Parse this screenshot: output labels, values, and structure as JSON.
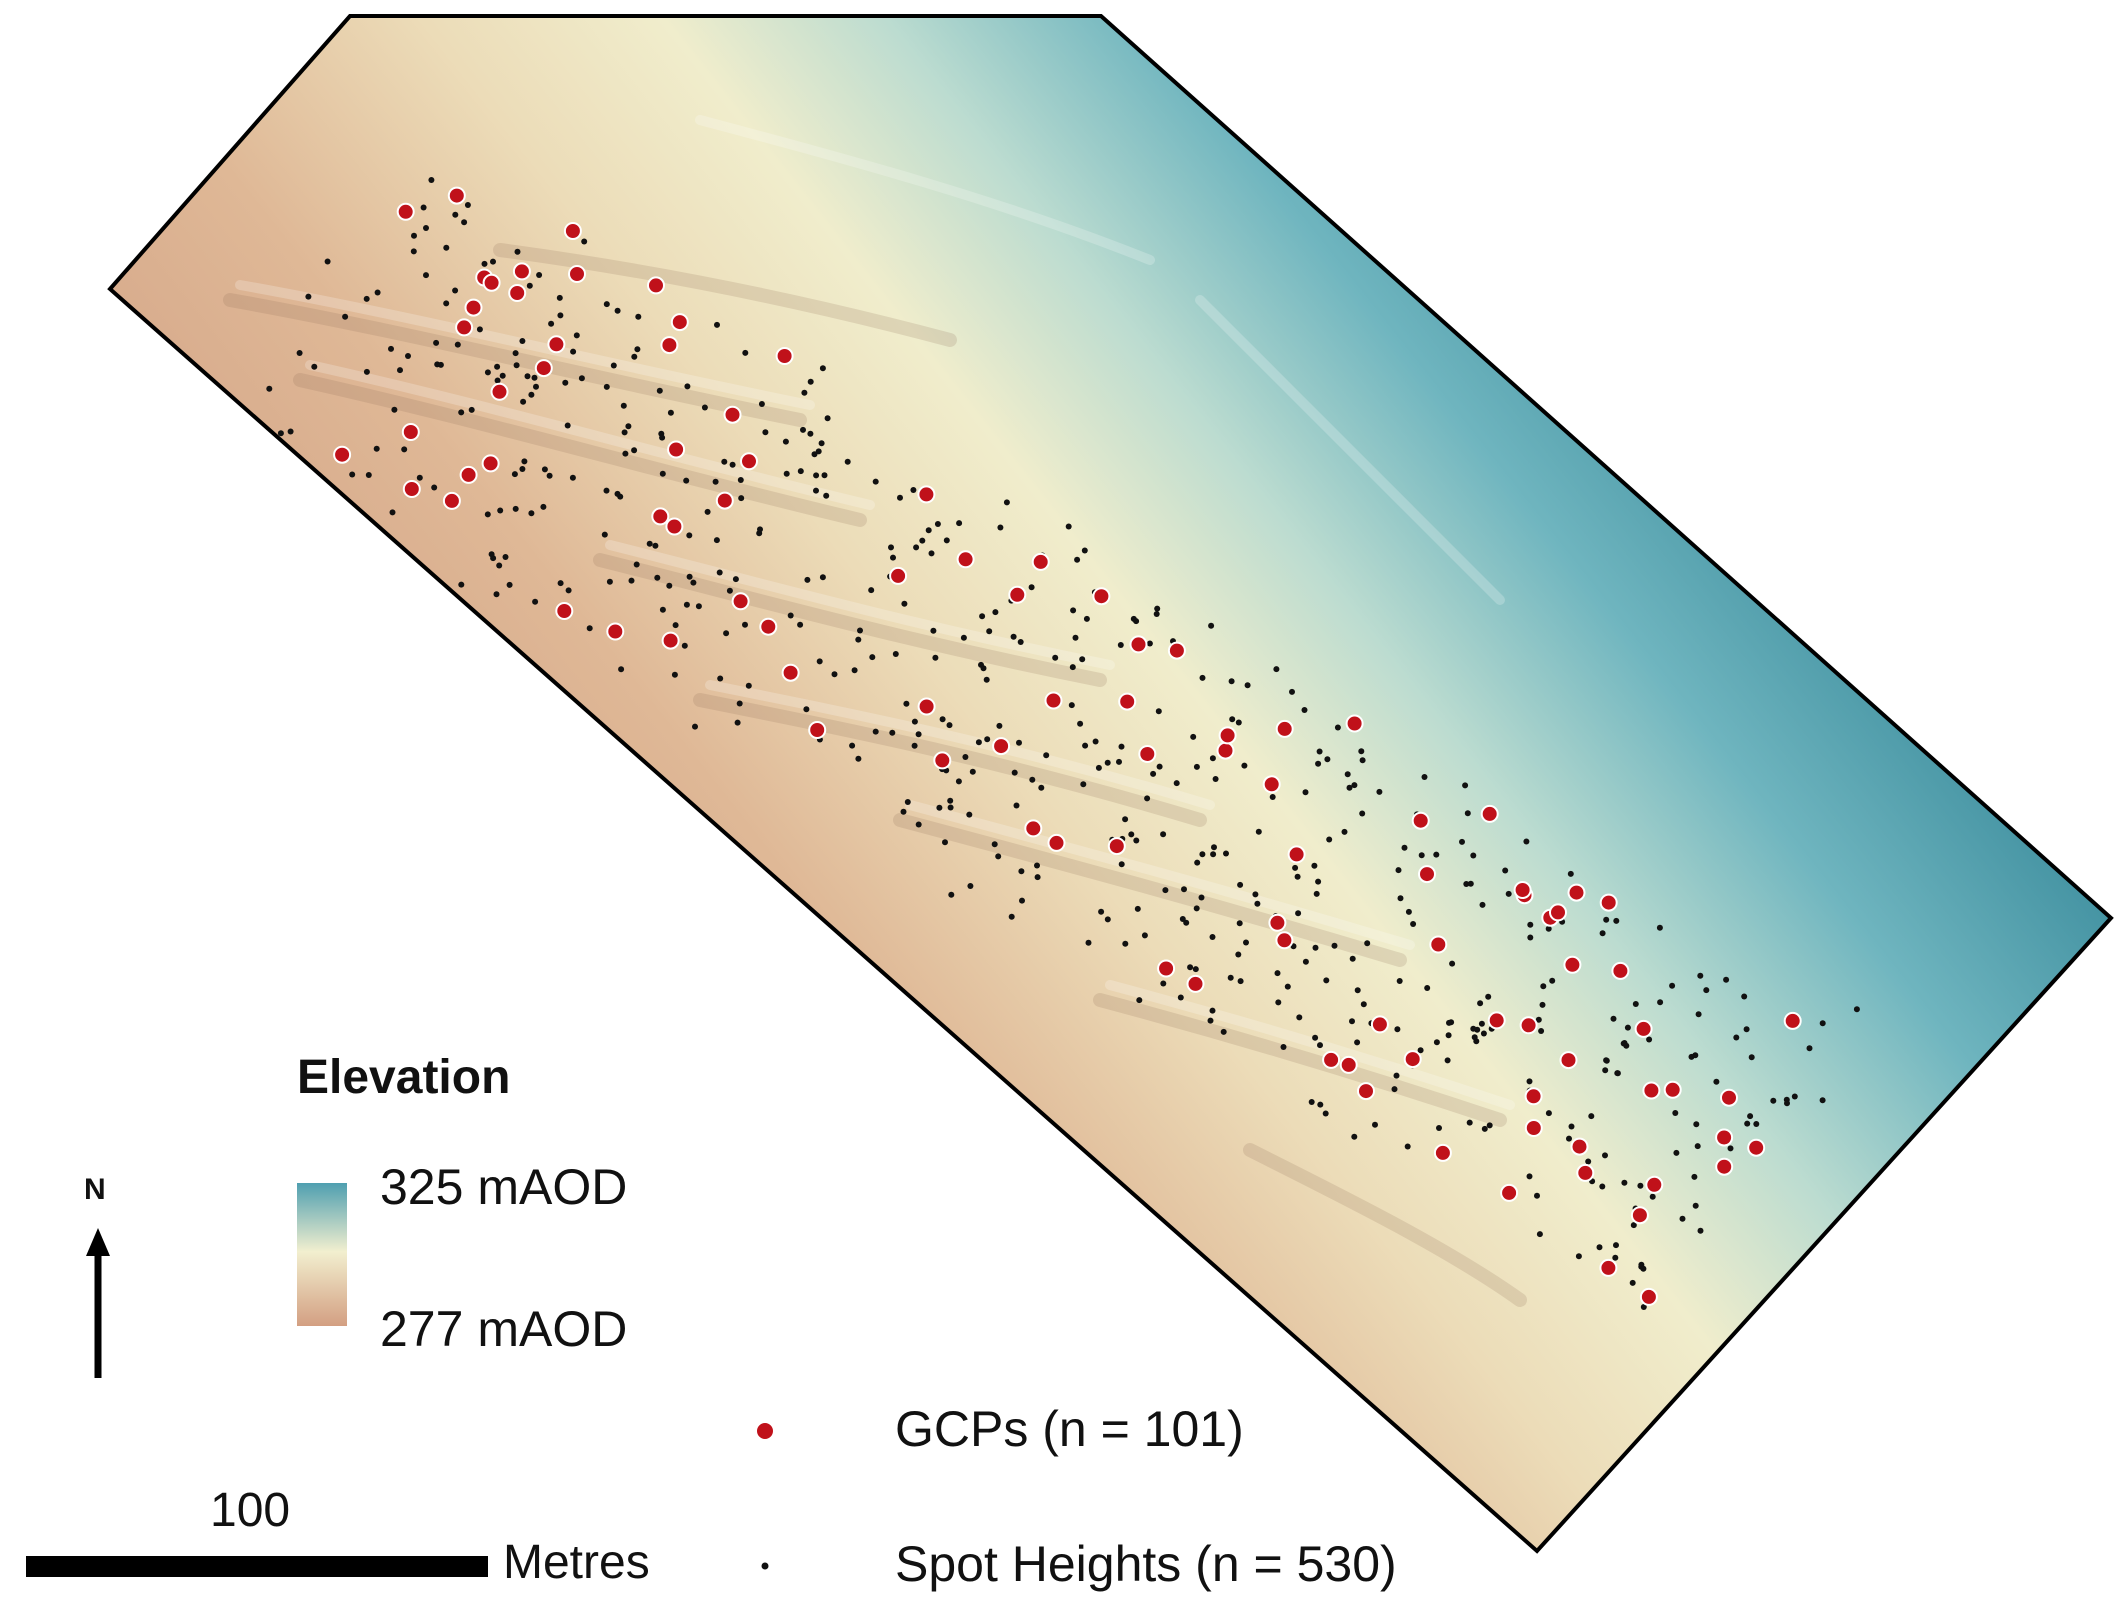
{
  "legend": {
    "title": "Elevation",
    "max_label": "325 mAOD",
    "min_label": "277 mAOD",
    "colors": {
      "high": "#4f9fb0",
      "mid": "#f2efcf",
      "low": "#d8a98a"
    }
  },
  "north_arrow": {
    "label": "N",
    "icon": "north-arrow-icon"
  },
  "points_legend": {
    "gcp_label": "GCPs (n = 101)",
    "gcp_color": "#c0111a",
    "spot_label": "Spot Heights (n = 530)",
    "spot_color": "#111111"
  },
  "scale_bar": {
    "value": "100",
    "unit": "Metres"
  }
}
